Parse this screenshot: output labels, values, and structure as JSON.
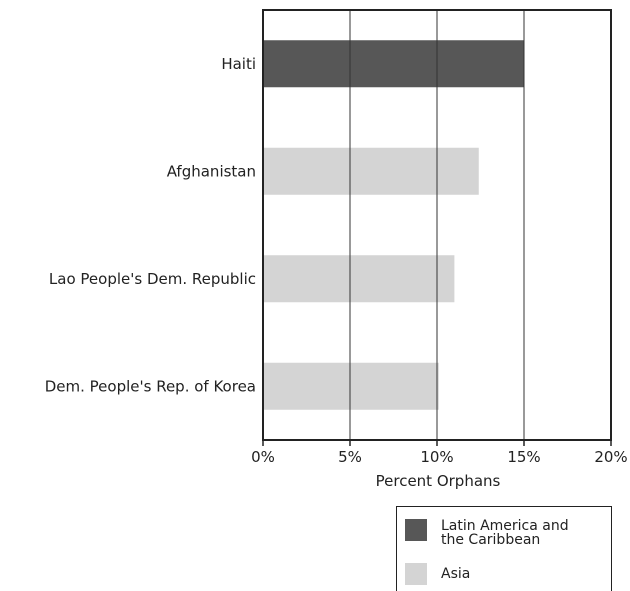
{
  "chart_data": {
    "type": "bar",
    "orientation": "horizontal",
    "xlabel": "Percent Orphans",
    "xlim": [
      0,
      20
    ],
    "xticks": [
      "0%",
      "5%",
      "10%",
      "15%",
      "20%"
    ],
    "xtick_values": [
      0,
      5,
      10,
      15,
      20
    ],
    "grid": "vertical",
    "categories": [
      "Haiti",
      "Afghanistan",
      "Lao People's Dem. Republic",
      "Dem. People's Rep. of Korea"
    ],
    "values": [
      15.0,
      12.4,
      11.0,
      10.1
    ],
    "regions": [
      "Latin America and the Caribbean",
      "Asia",
      "Asia",
      "Asia"
    ],
    "legend": {
      "position": "bottom-right",
      "items": [
        {
          "label_line1": "Latin America and",
          "label_line2": "the Caribbean",
          "color": "#575757"
        },
        {
          "label_line1": "Asia",
          "label_line2": "",
          "color": "#d4d4d4"
        }
      ]
    }
  }
}
